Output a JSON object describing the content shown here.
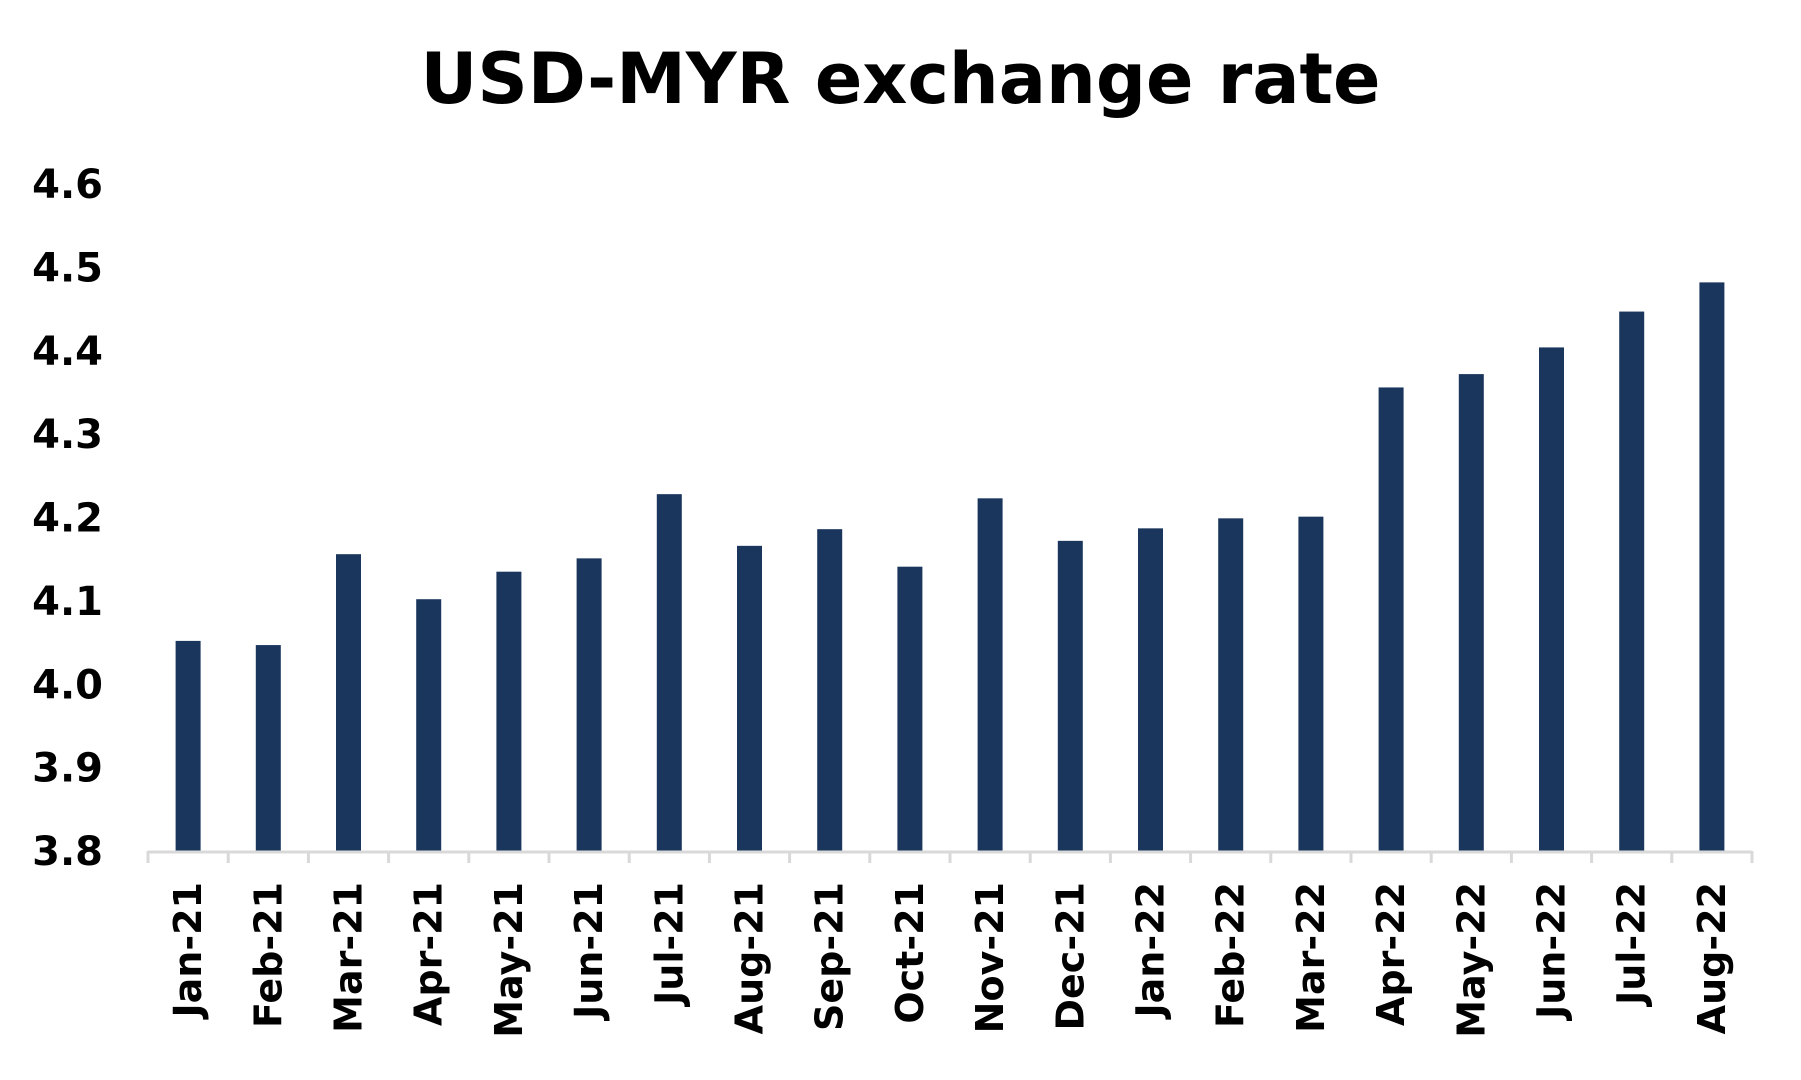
{
  "chart_data": {
    "type": "bar",
    "title": "USD-MYR exchange rate",
    "xlabel": "",
    "ylabel": "",
    "ylim": [
      3.8,
      4.6
    ],
    "yticks": [
      "3.8",
      "3.9",
      "4.0",
      "4.1",
      "4.2",
      "4.3",
      "4.4",
      "4.5",
      "4.6"
    ],
    "grid": false,
    "legend": "none",
    "categories": [
      "Jan-21",
      "Feb-21",
      "Mar-21",
      "Apr-21",
      "May-21",
      "Jun-21",
      "Jul-21",
      "Aug-21",
      "Sep-21",
      "Oct-21",
      "Nov-21",
      "Dec-21",
      "Jan-22",
      "Feb-22",
      "Mar-22",
      "Apr-22",
      "May-22",
      "Jun-22",
      "Jul-22",
      "Aug-22"
    ],
    "series": [
      {
        "values": [
          4.052,
          4.047,
          4.156,
          4.102,
          4.135,
          4.151,
          4.228,
          4.166,
          4.186,
          4.141,
          4.223,
          4.172,
          4.187,
          4.199,
          4.201,
          4.356,
          4.372,
          4.404,
          4.447,
          4.482
        ],
        "color": "#1b365d"
      }
    ]
  }
}
